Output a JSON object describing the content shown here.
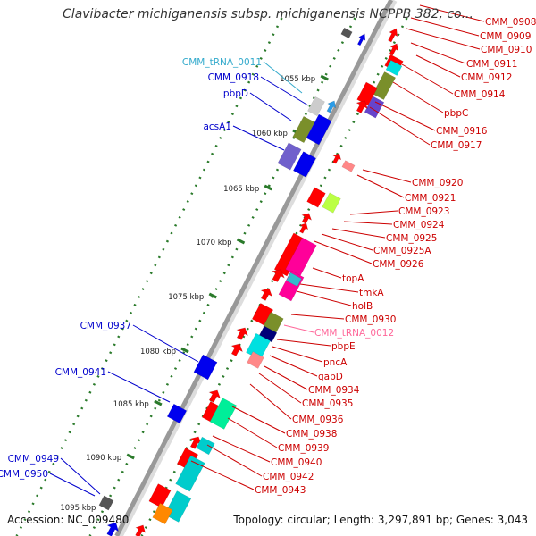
{
  "title": "Clavibacter michiganensis subsp. michiganensis NCPPB 382, co...",
  "footer": {
    "accession": "Accession: NC_009480",
    "topology": "Topology: circular; Length: 3,297,891 bp; Genes: 3,043"
  },
  "colors": {
    "backbone": "#999999",
    "plus_strand_label": "#0000cc",
    "minus_strand_label": "#cc0000",
    "trna_plus_label": "#33aacc",
    "trna_minus_label": "#ff6699",
    "tick": "#2a7a2a"
  },
  "scale_ticks": [
    "1055 kbp",
    "1060 kbp",
    "1065 kbp",
    "1070 kbp",
    "1075 kbp",
    "1080 kbp",
    "1085 kbp",
    "1090 kbp",
    "1095 kbp"
  ],
  "left_labels": [
    "CMM_tRNA_0011",
    "CMM_0918",
    "pbpD",
    "acsA1",
    "CMM_0937",
    "CMM_0941",
    "CMM_0949",
    "CMM_0950"
  ],
  "right_labels": [
    "CMM_0908",
    "CMM_0909",
    "CMM_0910",
    "CMM_0911",
    "CMM_0912",
    "CMM_0914",
    "pbpC",
    "CMM_0916",
    "CMM_0917",
    "CMM_0920",
    "CMM_0921",
    "CMM_0923",
    "CMM_0924",
    "CMM_0925",
    "CMM_0925A",
    "CMM_0926",
    "topA",
    "tmkA",
    "holB",
    "CMM_0930",
    "CMM_tRNA_0012",
    "pbpE",
    "pncA",
    "gabD",
    "CMM_0934",
    "CMM_0935",
    "CMM_0936",
    "CMM_0938",
    "CMM_0939",
    "CMM_0940",
    "CMM_0942",
    "CMM_0943"
  ]
}
